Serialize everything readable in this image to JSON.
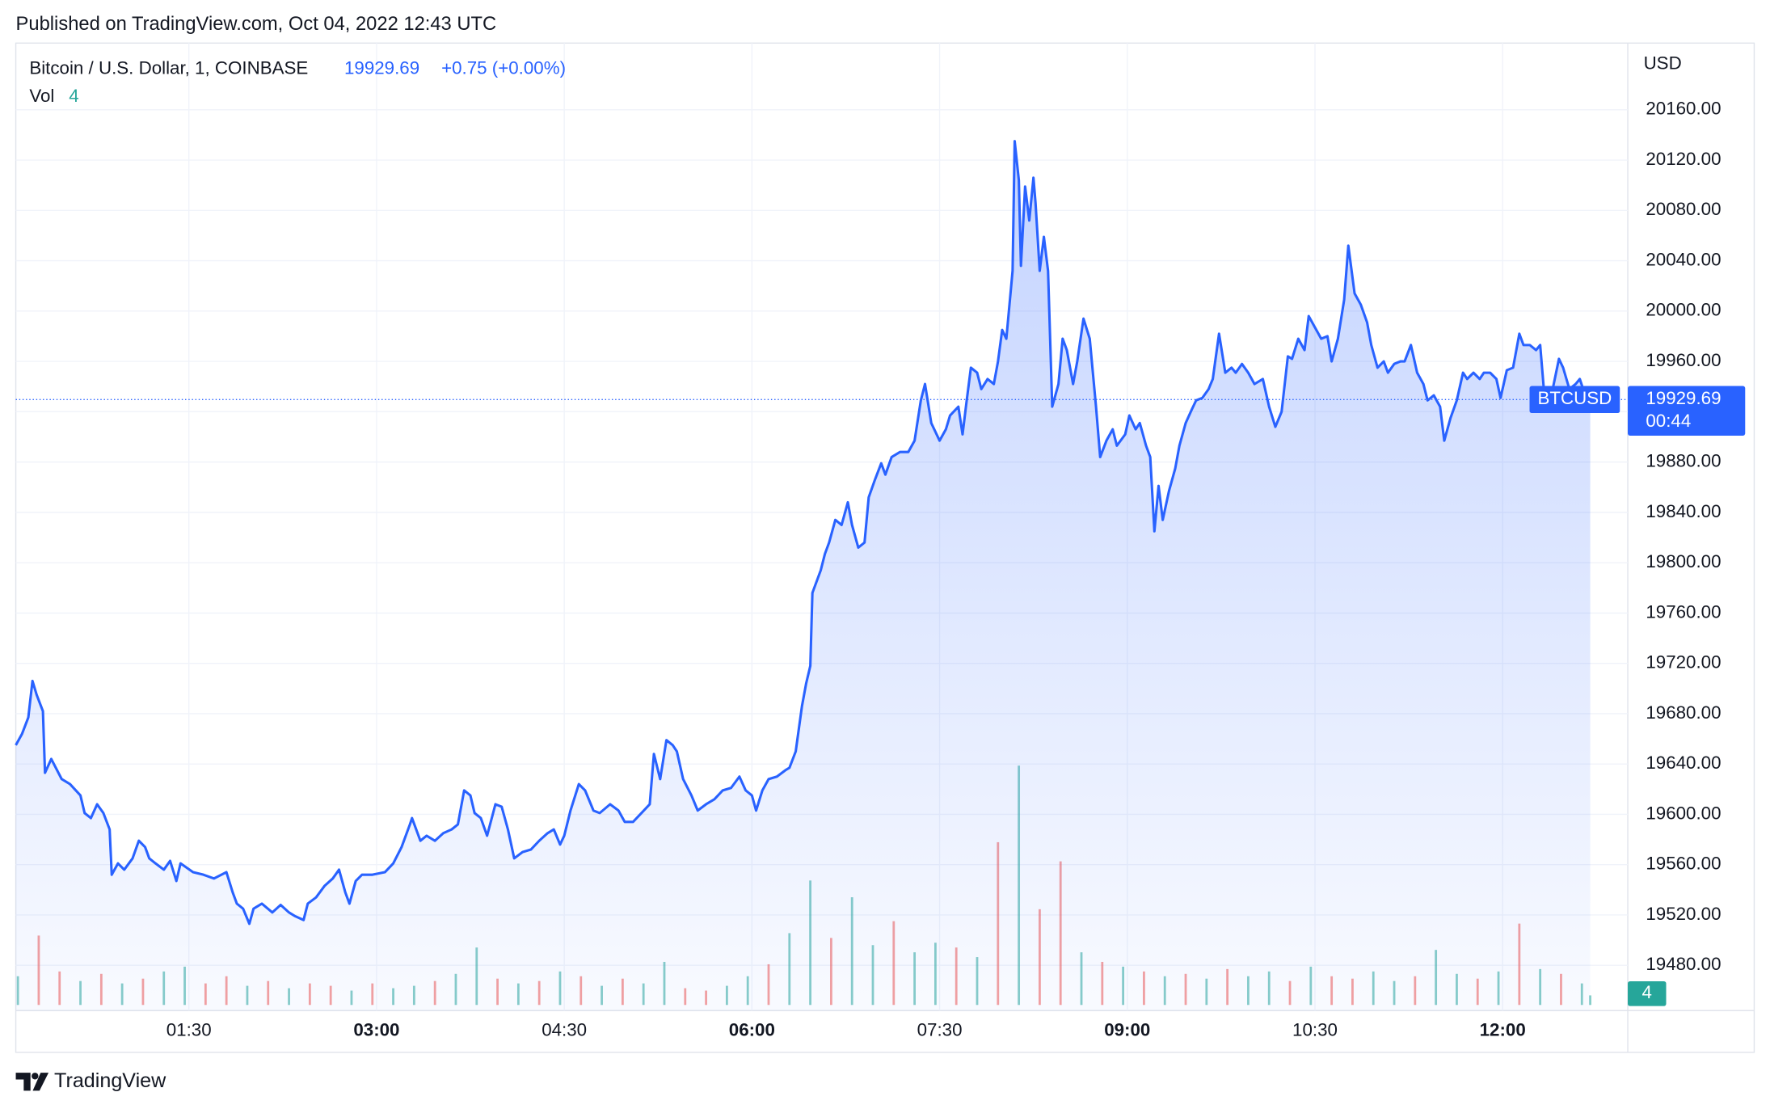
{
  "header": {
    "published": "Published on TradingView.com, Oct 04, 2022 12:43 UTC"
  },
  "footer": {
    "brand": "TradingView"
  },
  "chart_data": {
    "type": "area",
    "title": "Bitcoin / U.S. Dollar, 1, COINBASE",
    "last": 19929.69,
    "change": "+0.75 (+0.00%)",
    "currency": "USD",
    "symbol": "BTCUSD",
    "countdown": "00:44",
    "grid": true,
    "xlim": [
      7,
      780
    ],
    "ylim": [
      19444,
      20213
    ],
    "xticks": [
      {
        "value": 90,
        "label": "01:30"
      },
      {
        "value": 180,
        "label": "03:00",
        "bold": true
      },
      {
        "value": 270,
        "label": "04:30"
      },
      {
        "value": 360,
        "label": "06:00",
        "bold": true
      },
      {
        "value": 450,
        "label": "07:30"
      },
      {
        "value": 540,
        "label": "09:00",
        "bold": true
      },
      {
        "value": 630,
        "label": "10:30"
      },
      {
        "value": 720,
        "label": "12:00",
        "bold": true
      }
    ],
    "yticks": [
      {
        "value": 19480,
        "label": "19480.00"
      },
      {
        "value": 19520,
        "label": "19520.00"
      },
      {
        "value": 19560,
        "label": "19560.00"
      },
      {
        "value": 19600,
        "label": "19600.00"
      },
      {
        "value": 19640,
        "label": "19640.00"
      },
      {
        "value": 19680,
        "label": "19680.00"
      },
      {
        "value": 19720,
        "label": "19720.00"
      },
      {
        "value": 19760,
        "label": "19760.00"
      },
      {
        "value": 19800,
        "label": "19800.00"
      },
      {
        "value": 19840,
        "label": "19840.00"
      },
      {
        "value": 19880,
        "label": "19880.00"
      },
      {
        "value": 19920,
        "label": "19920.00"
      },
      {
        "value": 19960,
        "label": "19960.00"
      },
      {
        "value": 20000,
        "label": "20000.00"
      },
      {
        "value": 20040,
        "label": "20040.00"
      },
      {
        "value": 20080,
        "label": "20080.00"
      },
      {
        "value": 20120,
        "label": "20120.00"
      },
      {
        "value": 20160,
        "label": "20160.00"
      }
    ],
    "x": [
      7,
      10,
      13,
      15,
      17,
      20,
      21,
      24,
      29,
      33,
      38,
      40,
      43,
      46,
      49,
      52,
      53,
      56,
      59,
      63,
      66,
      69,
      71,
      74,
      78,
      81,
      84,
      86,
      92,
      97,
      102,
      108,
      111,
      113,
      116,
      119,
      121,
      125,
      130,
      134,
      138,
      141,
      145,
      147,
      151,
      155,
      159,
      162,
      165,
      167,
      170,
      173,
      178,
      184,
      188,
      192,
      196,
      197,
      201,
      204,
      208,
      212,
      216,
      219,
      222,
      225,
      227,
      230,
      233,
      237,
      240,
      243,
      246,
      250,
      254,
      258,
      262,
      265,
      268,
      270,
      273,
      277,
      280,
      284,
      287,
      292,
      296,
      299,
      303,
      307,
      311,
      313,
      316,
      319,
      322,
      324,
      327,
      331,
      334,
      338,
      342,
      346,
      350,
      354,
      357,
      360,
      362,
      365,
      368,
      372,
      376,
      378,
      381,
      384,
      386,
      388,
      389,
      393,
      395,
      397,
      400,
      403,
      406,
      408,
      411,
      414,
      416,
      419,
      422,
      424,
      427,
      431,
      435,
      438,
      441,
      443,
      446,
      450,
      453,
      455,
      459,
      461,
      463,
      465,
      468,
      470,
      473,
      476,
      478,
      480,
      482,
      485,
      486,
      488,
      489,
      491,
      493,
      495,
      496,
      498,
      500,
      502,
      504,
      507,
      509,
      511,
      514,
      516,
      519,
      522,
      525,
      527,
      530,
      533,
      535,
      539,
      541,
      544,
      546,
      549,
      551,
      553,
      555,
      557,
      560,
      563,
      565,
      568,
      571,
      573,
      576,
      579,
      581,
      584,
      587,
      590,
      592,
      595,
      598,
      601,
      605,
      608,
      611,
      614,
      617,
      619,
      622,
      625,
      627,
      630,
      633,
      636,
      638,
      641,
      644,
      646,
      649,
      652,
      655,
      657,
      660,
      663,
      665,
      668,
      671,
      673,
      676,
      679,
      682,
      684,
      687,
      690,
      692,
      695,
      698,
      701,
      703,
      706,
      709,
      711,
      714,
      717,
      719,
      722,
      725,
      728,
      730,
      733,
      736,
      738,
      740,
      742,
      744,
      747,
      749,
      752,
      755,
      757,
      760,
      762
    ],
    "series": [
      {
        "name": "BTCUSD",
        "color": "#2962ff",
        "values": [
          19655,
          19664,
          19677,
          19706,
          19695,
          19682,
          19633,
          19644,
          19628,
          19624,
          19615,
          19601,
          19597,
          19608,
          19601,
          19588,
          19552,
          19561,
          19556,
          19565,
          19579,
          19574,
          19565,
          19561,
          19556,
          19563,
          19547,
          19561,
          19554,
          19552,
          19549,
          19554,
          19538,
          19529,
          19525,
          19513,
          19525,
          19529,
          19522,
          19528,
          19522,
          19519,
          19516,
          19529,
          19534,
          19543,
          19549,
          19556,
          19538,
          19529,
          19547,
          19552,
          19552,
          19554,
          19561,
          19574,
          19592,
          19597,
          19579,
          19583,
          19579,
          19585,
          19588,
          19592,
          19619,
          19615,
          19601,
          19597,
          19583,
          19608,
          19606,
          19588,
          19565,
          19570,
          19572,
          19579,
          19585,
          19588,
          19576,
          19583,
          19603,
          19624,
          19619,
          19603,
          19601,
          19608,
          19603,
          19594,
          19594,
          19601,
          19608,
          19648,
          19628,
          19659,
          19655,
          19650,
          19628,
          19615,
          19603,
          19608,
          19612,
          19619,
          19621,
          19630,
          19619,
          19615,
          19603,
          19619,
          19628,
          19630,
          19635,
          19637,
          19650,
          19686,
          19704,
          19718,
          19776,
          19794,
          19807,
          19816,
          19834,
          19830,
          19848,
          19830,
          19812,
          19816,
          19852,
          19866,
          19879,
          19870,
          19884,
          19888,
          19888,
          19897,
          19929,
          19942,
          19911,
          19897,
          19906,
          19917,
          19924,
          19902,
          19929,
          19955,
          19951,
          19938,
          19946,
          19942,
          19960,
          19985,
          19978,
          20032,
          20135,
          20104,
          20036,
          20099,
          20072,
          20106,
          20086,
          20032,
          20059,
          20032,
          19924,
          19942,
          19978,
          19969,
          19942,
          19960,
          19994,
          19978,
          19924,
          19884,
          19897,
          19906,
          19893,
          19902,
          19917,
          19906,
          19911,
          19893,
          19884,
          19825,
          19861,
          19834,
          19857,
          19875,
          19893,
          19911,
          19922,
          19929,
          19931,
          19938,
          19946,
          19982,
          19951,
          19955,
          19951,
          19958,
          19951,
          19942,
          19946,
          19924,
          19908,
          19920,
          19964,
          19962,
          19978,
          19969,
          19996,
          19987,
          19978,
          19980,
          19960,
          19978,
          20009,
          20052,
          20014,
          20005,
          19991,
          19973,
          19955,
          19960,
          19951,
          19958,
          19960,
          19960,
          19973,
          19951,
          19942,
          19929,
          19933,
          19924,
          19897,
          19915,
          19929,
          19951,
          19946,
          19951,
          19946,
          19951,
          19951,
          19946,
          19931,
          19953,
          19955,
          19982,
          19973,
          19973,
          19969,
          19973,
          19933,
          19933,
          19938,
          19962,
          19955,
          19938,
          19942,
          19946,
          19931,
          19929.69
        ]
      }
    ],
    "volume": {
      "name": "Vol",
      "ylim": [
        0,
        100
      ],
      "colors": [
        "#26a69a",
        "#ef5350"
      ],
      "x": [
        8,
        18,
        28,
        38,
        48,
        58,
        68,
        78,
        88,
        98,
        108,
        118,
        128,
        138,
        148,
        158,
        168,
        178,
        188,
        198,
        208,
        218,
        228,
        238,
        248,
        258,
        268,
        278,
        288,
        298,
        308,
        318,
        328,
        338,
        348,
        358,
        368,
        378,
        388,
        398,
        408,
        418,
        428,
        438,
        448,
        458,
        468,
        478,
        488,
        498,
        508,
        518,
        528,
        538,
        548,
        558,
        568,
        578,
        588,
        598,
        608,
        618,
        628,
        638,
        648,
        658,
        668,
        678,
        688,
        698,
        708,
        718,
        728,
        738,
        748,
        758,
        762
      ],
      "values": [
        12,
        29,
        14,
        10,
        13,
        9,
        11,
        14,
        16,
        9,
        12,
        8,
        10,
        7,
        9,
        8,
        6,
        9,
        7,
        8,
        10,
        13,
        24,
        11,
        9,
        10,
        14,
        12,
        8,
        11,
        9,
        18,
        7,
        6,
        8,
        12,
        17,
        30,
        52,
        28,
        45,
        25,
        35,
        22,
        26,
        24,
        20,
        68,
        100,
        40,
        60,
        22,
        18,
        16,
        14,
        12,
        13,
        11,
        15,
        12,
        14,
        10,
        16,
        12,
        11,
        14,
        10,
        12,
        23,
        13,
        11,
        14,
        34,
        15,
        13,
        9,
        4
      ],
      "up": [
        true,
        false,
        false,
        true,
        false,
        true,
        false,
        true,
        true,
        false,
        false,
        true,
        false,
        true,
        false,
        false,
        true,
        false,
        true,
        true,
        false,
        true,
        true,
        false,
        true,
        false,
        true,
        false,
        true,
        false,
        true,
        true,
        false,
        false,
        true,
        true,
        false,
        true,
        true,
        false,
        true,
        true,
        false,
        true,
        true,
        false,
        true,
        false,
        true,
        false,
        false,
        true,
        false,
        true,
        false,
        true,
        false,
        true,
        false,
        true,
        true,
        false,
        true,
        false,
        false,
        true,
        true,
        false,
        true,
        true,
        false,
        true,
        false,
        true,
        false,
        true,
        true
      ]
    }
  }
}
